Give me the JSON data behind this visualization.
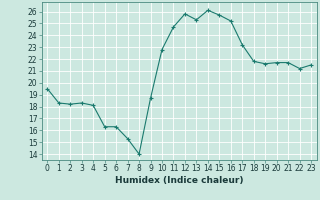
{
  "x": [
    0,
    1,
    2,
    3,
    4,
    5,
    6,
    7,
    8,
    9,
    10,
    11,
    12,
    13,
    14,
    15,
    16,
    17,
    18,
    19,
    20,
    21,
    22,
    23
  ],
  "y": [
    19.5,
    18.3,
    18.2,
    18.3,
    18.1,
    16.3,
    16.3,
    15.3,
    14.0,
    18.7,
    22.8,
    24.7,
    25.8,
    25.3,
    26.1,
    25.7,
    25.2,
    23.2,
    21.8,
    21.6,
    21.7,
    21.7,
    21.2,
    21.5
  ],
  "line_color": "#1a7a6e",
  "marker": "+",
  "marker_size": 3,
  "marker_linewidth": 0.8,
  "line_width": 0.8,
  "bg_color": "#cce8e0",
  "grid_color": "#ffffff",
  "xlabel": "Humidex (Indice chaleur)",
  "ylabel": "",
  "title": "",
  "xlim": [
    -0.5,
    23.5
  ],
  "ylim": [
    13.5,
    26.8
  ],
  "yticks": [
    14,
    15,
    16,
    17,
    18,
    19,
    20,
    21,
    22,
    23,
    24,
    25,
    26
  ],
  "xticks": [
    0,
    1,
    2,
    3,
    4,
    5,
    6,
    7,
    8,
    9,
    10,
    11,
    12,
    13,
    14,
    15,
    16,
    17,
    18,
    19,
    20,
    21,
    22,
    23
  ],
  "tick_label_fontsize": 5.5,
  "xlabel_fontsize": 6.5,
  "label_color": "#1a3a3a",
  "spine_color": "#4a8a80"
}
